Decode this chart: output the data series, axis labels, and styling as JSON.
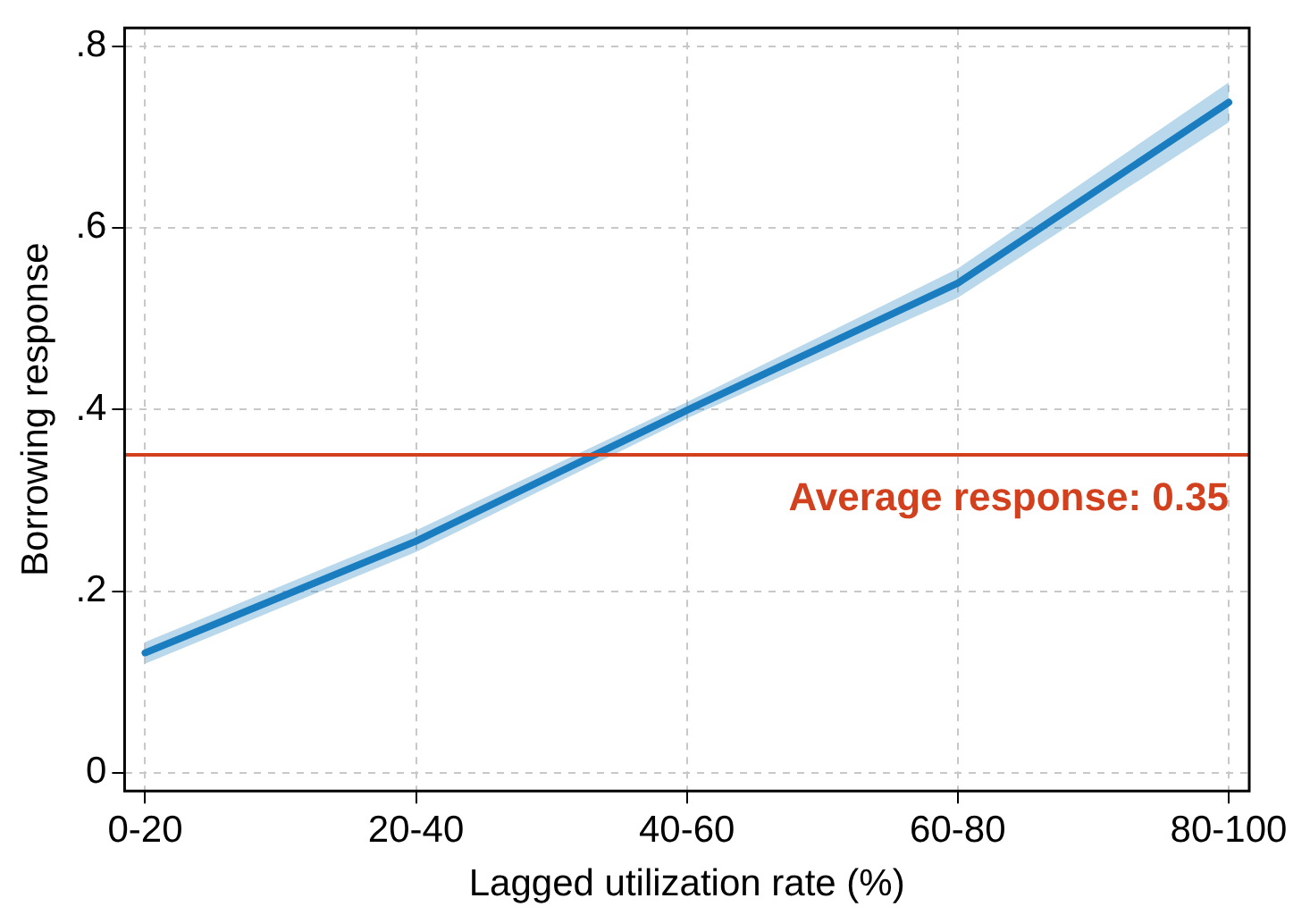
{
  "chart_data": {
    "type": "line",
    "xlabel": "Lagged utilization rate (%)",
    "ylabel": "Borrowing response",
    "categories": [
      "0-20",
      "20-40",
      "40-60",
      "60-80",
      "80-100"
    ],
    "series": [
      {
        "color": "#1a7dc0",
        "values": [
          0.132,
          0.255,
          0.399,
          0.539,
          0.738
        ],
        "lower": [
          0.12,
          0.243,
          0.39,
          0.523,
          0.716
        ],
        "upper": [
          0.144,
          0.267,
          0.408,
          0.555,
          0.76
        ]
      }
    ],
    "ylim": [
      -0.02,
      0.82
    ],
    "yticks": [
      {
        "value": 0,
        "label": "0"
      },
      {
        "value": 0.2,
        "label": ".2"
      },
      {
        "value": 0.4,
        "label": ".4"
      },
      {
        "value": 0.6,
        "label": ".6"
      },
      {
        "value": 0.8,
        "label": ".8"
      }
    ],
    "ref_lines": [
      {
        "axis": "y",
        "value": 0.35,
        "label": "Average response: 0.35",
        "color": "#d2401e"
      }
    ],
    "grid": true,
    "legend": false,
    "marker": "none",
    "line_style": "solid"
  }
}
